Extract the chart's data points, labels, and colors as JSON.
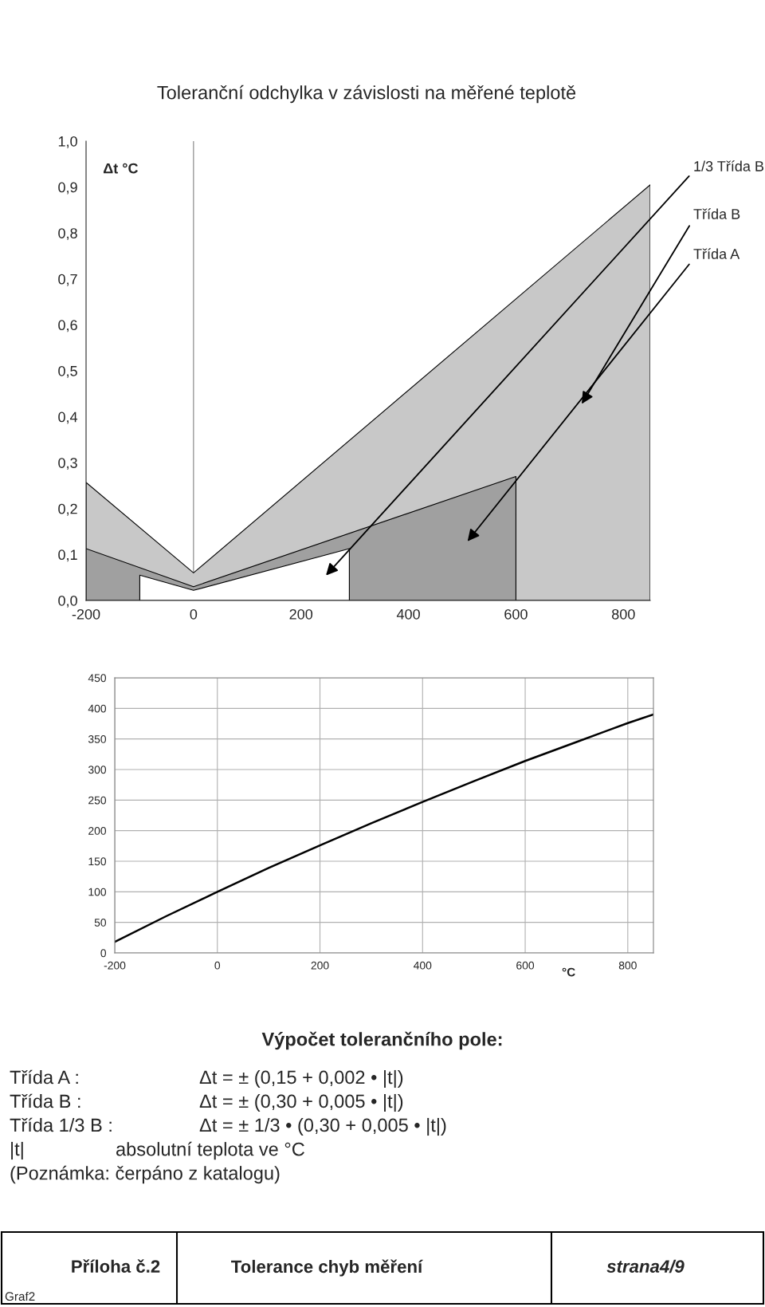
{
  "chart_data": [
    {
      "type": "area",
      "title": "Toleranční odchylka v závislosti na měřené teplotě",
      "ylabel": "Δt °C",
      "series": [
        {
          "type": "area",
          "name": "Třída B",
          "color": "#c8c8c8",
          "x": [
            -200,
            0,
            850
          ],
          "values": [
            0.257,
            0.06,
            0.905
          ]
        },
        {
          "type": "area",
          "name": "Třída A",
          "color": "#a0a0a0",
          "x": [
            -200,
            0,
            600
          ],
          "values": [
            0.113,
            0.03,
            0.27
          ]
        },
        {
          "type": "area",
          "name": "1/3 Třída B",
          "color": "#ffffff",
          "x": [
            -100,
            0,
            290
          ],
          "values": [
            0.055,
            0.022,
            0.113
          ]
        }
      ],
      "xlim": [
        -200,
        850
      ],
      "xticks": [
        -200,
        0,
        200,
        400,
        600,
        800
      ],
      "ylim": [
        0,
        1.0
      ],
      "yticks": [
        {
          "value": 0,
          "label": "0,0"
        },
        {
          "value": 0.1,
          "label": "0,1"
        },
        {
          "value": 0.2,
          "label": "0,2"
        },
        {
          "value": 0.3,
          "label": "0,3"
        },
        {
          "value": 0.4,
          "label": "0,4"
        },
        {
          "value": 0.5,
          "label": "0,5"
        },
        {
          "value": 0.6,
          "label": "0,6"
        },
        {
          "value": 0.7,
          "label": "0,7"
        },
        {
          "value": 0.8,
          "label": "0,8"
        },
        {
          "value": 0.9,
          "label": "0,9"
        },
        {
          "value": 1.0,
          "label": "1,0"
        }
      ],
      "ref_lines": [
        {
          "axis": "x",
          "value": 0,
          "color": "#808080"
        }
      ],
      "grid": false
    },
    {
      "type": "line",
      "xlabel": "°C",
      "series": [
        {
          "color": "#000000",
          "x": [
            -200,
            -100,
            0,
            100,
            200,
            300,
            400,
            500,
            600,
            700,
            800,
            850
          ],
          "values": [
            18,
            60,
            100,
            139,
            176,
            212,
            247,
            281,
            314,
            345,
            376,
            390
          ]
        }
      ],
      "xlim": [
        -200,
        850
      ],
      "xticks": [
        -200,
        0,
        200,
        400,
        600,
        800
      ],
      "ylim": [
        0,
        450
      ],
      "yticks": [
        0,
        50,
        100,
        150,
        200,
        250,
        300,
        350,
        400,
        450
      ],
      "grid": true,
      "marker": "none",
      "line_style": "solid",
      "annotations": [
        "Výpočet tolerančního pole:",
        "Třída A :",
        "Δt = ± (0,15 + 0,002 • |t|)",
        "Třída B :",
        "Δt = ± (0,30 + 0,005 • |t|)",
        "Třída 1/3 B :",
        "Δt = ± 1/3 • (0,30 + 0,005 • |t|)",
        "|t|",
        "absolutní teplota ve °C",
        "(Poznámka: čerpáno z katalogu)",
        "Příloha č.2",
        "Tolerance chyb měření",
        "strana4/9",
        "Graf2"
      ]
    }
  ]
}
